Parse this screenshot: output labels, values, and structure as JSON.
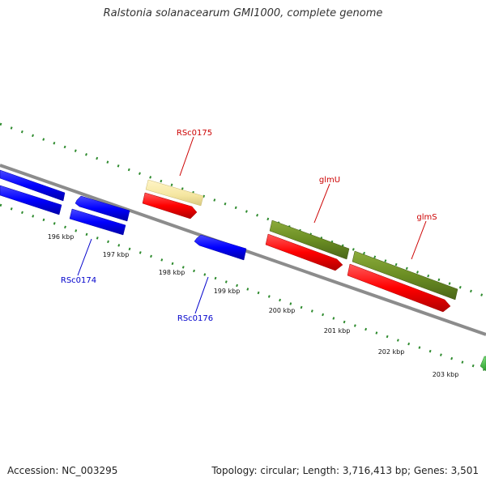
{
  "title": "Ralstonia solanacearum GMI1000, complete genome",
  "footer": {
    "accession": "Accession: NC_003295",
    "summary": "Topology: circular; Length: 3,716,413 bp; Genes: 3,501"
  },
  "scale_ticks": [
    "196 kbp",
    "197 kbp",
    "198 kbp",
    "199 kbp",
    "200 kbp",
    "201 kbp",
    "202 kbp",
    "203 kbp"
  ],
  "gene_labels": {
    "rsc0175": "RSc0175",
    "glmu": "glmU",
    "glms": "glmS",
    "rsc0174": "RSc0174",
    "rsc0176": "RSc0176"
  },
  "colors": {
    "forward_label": "#cc0000",
    "reverse_label": "#0000cc",
    "cds_red": "#ff0000",
    "cds_blue": "#0000ff",
    "gene_olive": "#6b8e23",
    "gene_pale": "#f5e6a0",
    "backbone": "#888888",
    "dots": "#2e8b2e"
  }
}
